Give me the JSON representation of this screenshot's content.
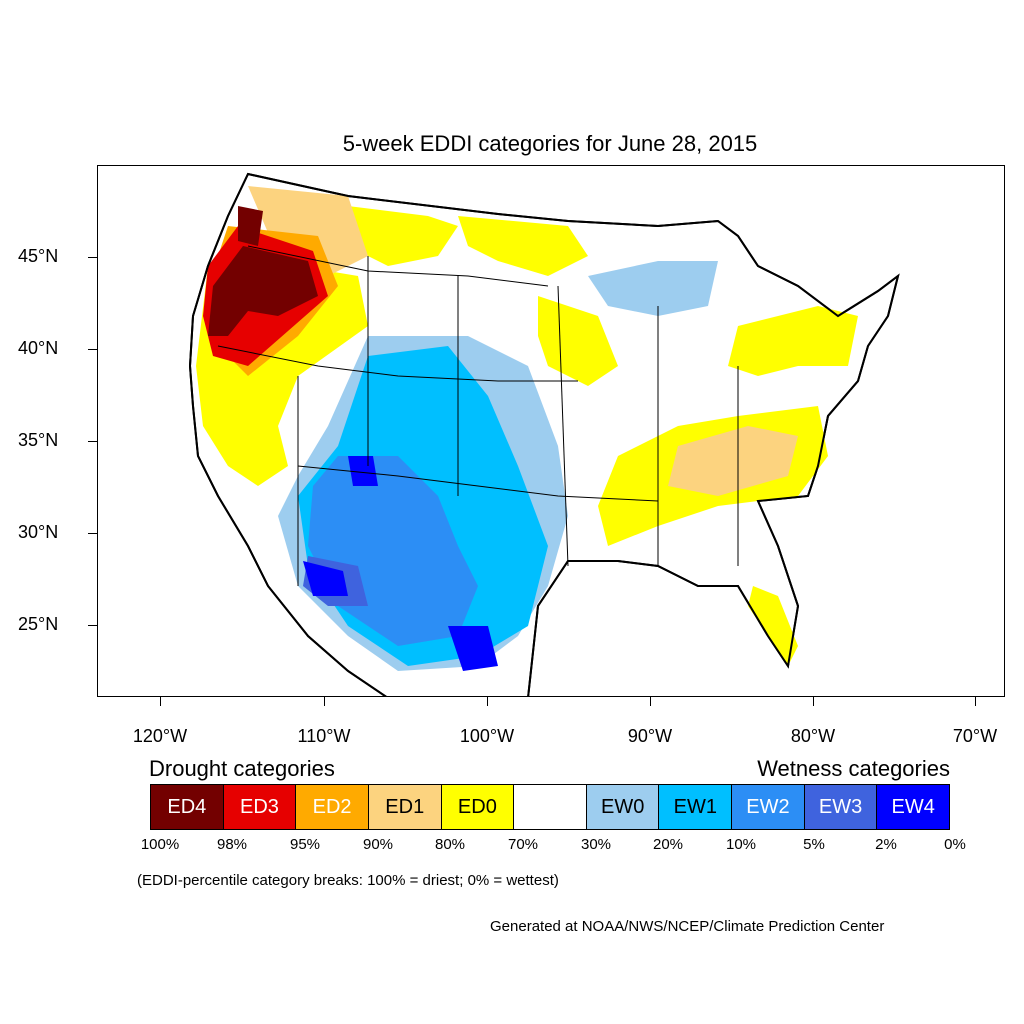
{
  "title": "5-week EDDI categories for June 28, 2015",
  "axes": {
    "lat_labels": [
      "45°N",
      "40°N",
      "35°N",
      "30°N",
      "25°N"
    ],
    "lon_labels": [
      "120°W",
      "110°W",
      "100°W",
      "90°W",
      "80°W",
      "70°W"
    ]
  },
  "legend": {
    "drought_title": "Drought categories",
    "wetness_title": "Wetness categories",
    "categories": [
      {
        "label": "ED4",
        "color": "#730000",
        "text_color": "#ffffff"
      },
      {
        "label": "ED3",
        "color": "#e60000",
        "text_color": "#ffffff"
      },
      {
        "label": "ED2",
        "color": "#ffaa00",
        "text_color": "#ffffff"
      },
      {
        "label": "ED1",
        "color": "#fcd37f",
        "text_color": "#000000"
      },
      {
        "label": "ED0",
        "color": "#ffff00",
        "text_color": "#000000"
      },
      {
        "label": "",
        "color": "#ffffff",
        "text_color": "#000000"
      },
      {
        "label": "EW0",
        "color": "#9dcdef",
        "text_color": "#000000"
      },
      {
        "label": "EW1",
        "color": "#00bfff",
        "text_color": "#000000"
      },
      {
        "label": "EW2",
        "color": "#2c8ef5",
        "text_color": "#ffffff"
      },
      {
        "label": "EW3",
        "color": "#3f63de",
        "text_color": "#ffffff"
      },
      {
        "label": "EW4",
        "color": "#0000ff",
        "text_color": "#ffffff"
      }
    ],
    "percentiles": [
      "100%",
      "98%",
      "95%",
      "90%",
      "80%",
      "70%",
      "30%",
      "20%",
      "10%",
      "5%",
      "2%",
      "0%"
    ]
  },
  "note": "(EDDI-percentile category breaks: 100% = driest; 0% = wettest)",
  "credit": "Generated at NOAA/NWS/NCEP/Climate Prediction Center"
}
